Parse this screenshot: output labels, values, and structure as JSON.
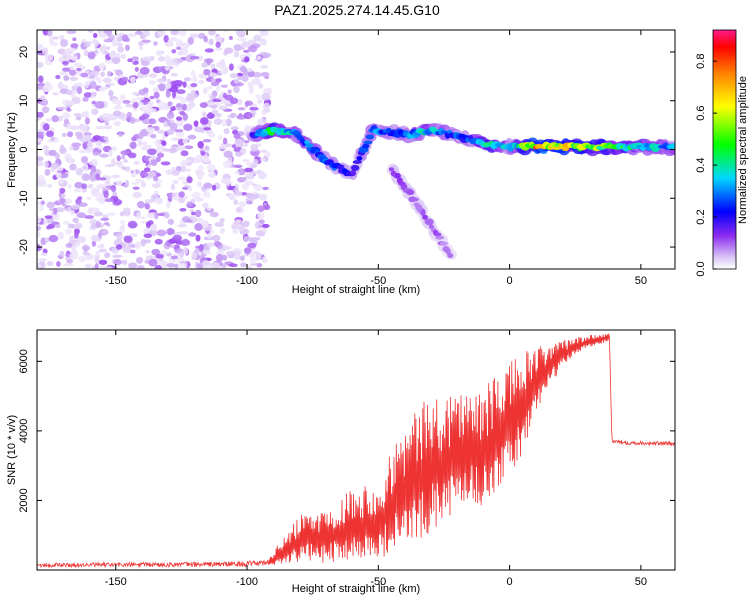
{
  "figure": {
    "title": "PAZ1.2025.274.14.45.G10"
  },
  "chart_data": [
    {
      "type": "heatmap",
      "title": "PAZ1.2025.274.14.45.G10",
      "xlabel": "Height of straight line (km)",
      "ylabel": "Frequency (Hz)",
      "xlim": [
        -180,
        63
      ],
      "ylim": [
        -24.5,
        24.5
      ],
      "x_ticks": [
        -150,
        -100,
        -50,
        0,
        50
      ],
      "y_ticks": [
        -20,
        -10,
        0,
        10,
        20
      ],
      "colorbar": {
        "label": "Normalized spectral amplitude",
        "range": [
          0,
          0.92
        ],
        "ticks": [
          0.0,
          0.2,
          0.4,
          0.6,
          0.8
        ],
        "colormap": [
          "#ffffff",
          "#d9c4f5",
          "#8c2cf0",
          "#0000ff",
          "#00d8ff",
          "#00ff00",
          "#ffff00",
          "#ff8000",
          "#ff0000",
          "#ff1a8c"
        ]
      },
      "noise_region": {
        "x_range": [
          -180,
          -92
        ],
        "freq_range": [
          -24.5,
          24.5
        ],
        "amplitude_range": [
          0.02,
          0.12
        ]
      },
      "ridges": [
        {
          "name": "main_track",
          "x": [
            -98,
            -90,
            -82,
            -75,
            -68,
            -60,
            -52,
            -45,
            -38,
            -30,
            -22,
            -15,
            -8,
            0,
            10,
            25,
            40,
            55,
            63
          ],
          "freq": [
            3,
            4,
            3.5,
            0,
            -3,
            -5,
            4,
            3.5,
            3,
            4,
            3,
            2,
            1,
            0.5,
            0.8,
            0.5,
            0.5,
            0.5,
            0.5
          ],
          "amplitude": [
            0.25,
            0.55,
            0.4,
            0.35,
            0.3,
            0.2,
            0.35,
            0.3,
            0.35,
            0.45,
            0.3,
            0.3,
            0.55,
            0.35,
            0.85,
            0.7,
            0.55,
            0.4,
            0.35
          ]
        },
        {
          "name": "descending_branch",
          "x": [
            -45,
            -38,
            -32,
            -27,
            -22
          ],
          "freq": [
            -4,
            -9,
            -14,
            -18,
            -22
          ],
          "amplitude": [
            0.15,
            0.14,
            0.13,
            0.12,
            0.1
          ]
        }
      ]
    },
    {
      "type": "line",
      "xlabel": "Height of straight line (km)",
      "ylabel": "SNR (10 * v/v)",
      "xlim": [
        -180,
        63
      ],
      "ylim": [
        0,
        6900
      ],
      "x_ticks": [
        -150,
        -100,
        -50,
        0,
        50
      ],
      "y_ticks": [
        2000,
        4000,
        6000
      ],
      "color": "#ee3333",
      "series": [
        {
          "name": "SNR",
          "envelope_x": [
            -180,
            -120,
            -100,
            -92,
            -85,
            -78,
            -70,
            -60,
            -50,
            -42,
            -35,
            -28,
            -20,
            -15,
            -10,
            -5,
            0,
            5,
            10,
            15,
            20,
            25,
            30,
            35,
            38,
            39,
            45,
            55,
            63
          ],
          "envelope_low": [
            80,
            90,
            100,
            120,
            180,
            250,
            200,
            300,
            300,
            600,
            800,
            1200,
            1600,
            2000,
            1800,
            2300,
            2600,
            3300,
            4500,
            5300,
            5800,
            6200,
            6400,
            6500,
            6600,
            3650,
            3600,
            3580,
            3560
          ],
          "envelope_high": [
            200,
            230,
            250,
            300,
            1100,
            1700,
            1800,
            2400,
            2600,
            4000,
            4700,
            5100,
            5300,
            5200,
            5100,
            5800,
            6000,
            6300,
            6400,
            6500,
            6600,
            6700,
            6750,
            6800,
            6800,
            3750,
            3720,
            3700,
            3680
          ]
        }
      ]
    }
  ]
}
